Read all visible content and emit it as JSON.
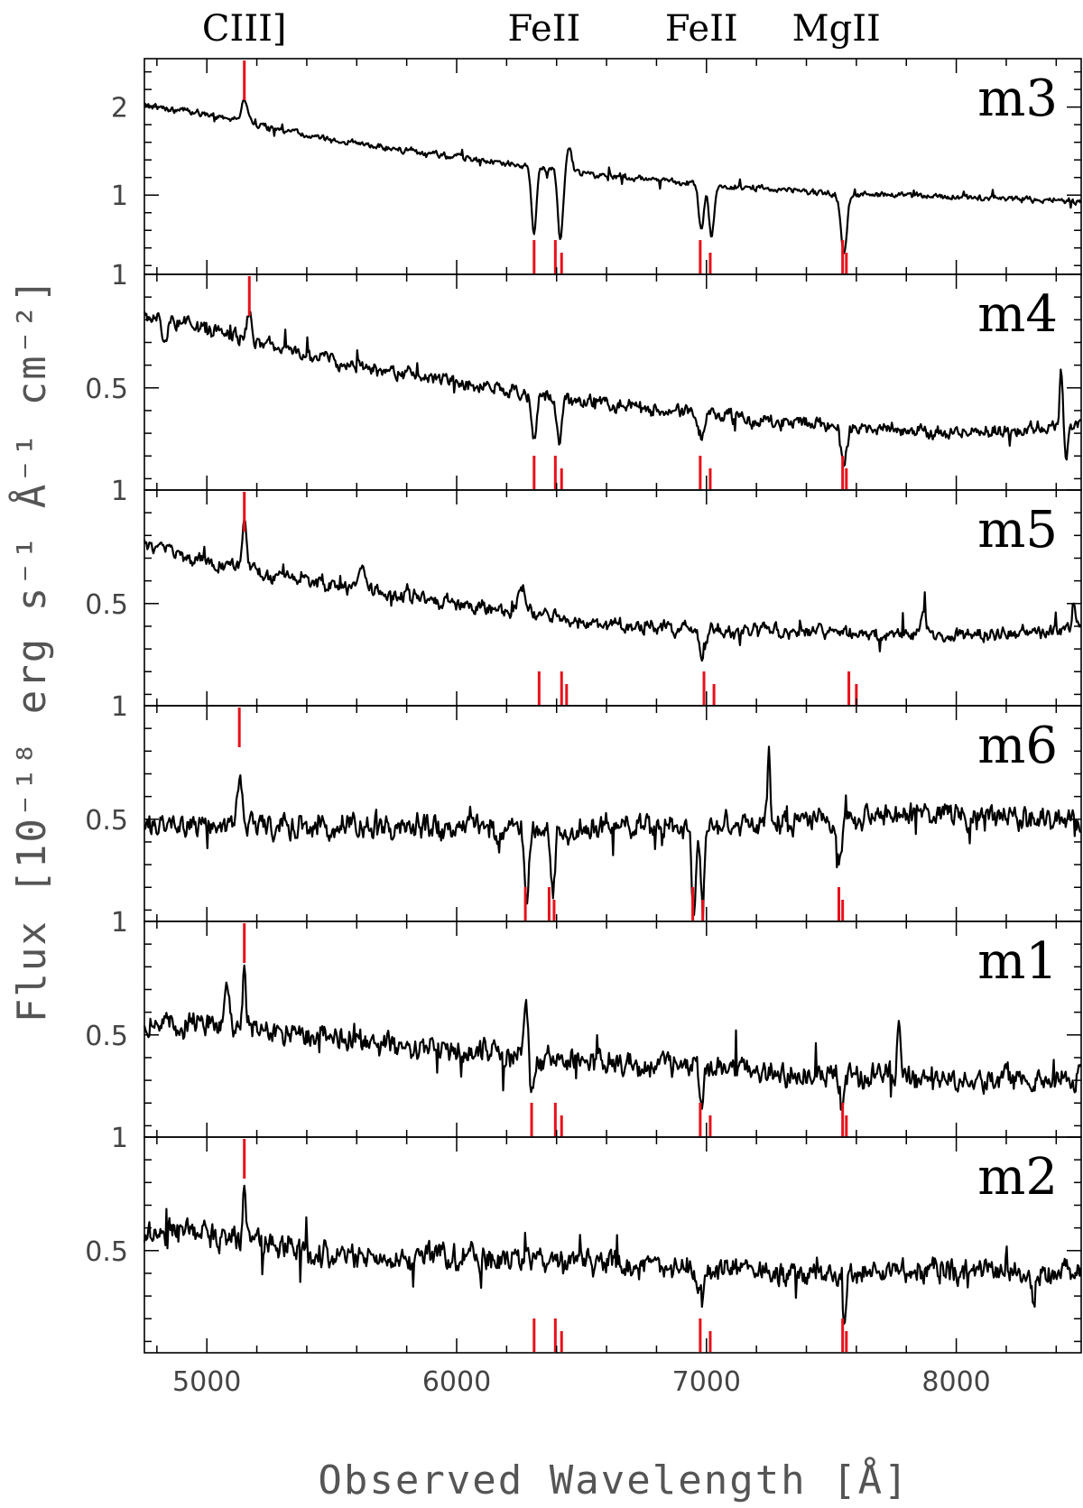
{
  "figure": {
    "xlabel": "Observed Wavelength [Å]",
    "ylabel": "Flux [10⁻¹⁸ erg s⁻¹ Å⁻¹ cm⁻²]",
    "marker_color": "#e8101a",
    "line_color": "#000000"
  },
  "line_labels": [
    {
      "label": "CIII]",
      "wavelength": 5150
    },
    {
      "label": "FeII",
      "wavelength": 6350
    },
    {
      "label": "FeII",
      "wavelength": 6980
    },
    {
      "label": "MgII",
      "wavelength": 7520
    }
  ],
  "chart_data": [
    {
      "type": "line",
      "panel": "m3",
      "xlim": [
        4750,
        8500
      ],
      "ylim": [
        0.1,
        2.55
      ],
      "yticks": [
        1,
        2
      ],
      "ytick_labels": [
        "1",
        "2"
      ],
      "xticks": [
        5000,
        6000,
        7000,
        8000
      ],
      "xtick_labels": [
        "5000",
        "6000",
        "7000",
        "8000"
      ],
      "series": [
        {
          "x_start": 4750,
          "x_end": 8500,
          "noise": 0.045,
          "spikes": true,
          "continuum": [
            [
              4750,
              2.02
            ],
            [
              5000,
              1.92
            ],
            [
              5500,
              1.62
            ],
            [
              6000,
              1.43
            ],
            [
              6500,
              1.25
            ],
            [
              7000,
              1.12
            ],
            [
              7500,
              1.02
            ],
            [
              8000,
              0.98
            ],
            [
              8500,
              0.93
            ]
          ],
          "features": [
            [
              5150,
              0.25,
              12
            ],
            [
              6310,
              -0.75,
              10
            ],
            [
              6415,
              -0.8,
              10
            ],
            [
              6450,
              0.3,
              10
            ],
            [
              6980,
              -0.55,
              10
            ],
            [
              7020,
              -0.6,
              10
            ],
            [
              7550,
              -0.7,
              12
            ]
          ]
        }
      ],
      "emission_markers": [
        5150
      ],
      "absorption_markers": [
        6310,
        6395,
        6420,
        6975,
        7015,
        7545,
        7560
      ]
    },
    {
      "type": "line",
      "panel": "m4",
      "xlim": [
        4750,
        8500
      ],
      "ylim": [
        0.05,
        1.0
      ],
      "yticks": [
        0.5,
        1
      ],
      "ytick_labels": [
        "0.5",
        "1"
      ],
      "xticks": [
        5000,
        6000,
        7000,
        8000
      ],
      "xtick_labels": [
        "5000",
        "6000",
        "7000",
        "8000"
      ],
      "series": [
        {
          "x_start": 4750,
          "x_end": 8500,
          "noise": 0.04,
          "spikes": true,
          "continuum": [
            [
              4750,
              0.82
            ],
            [
              5000,
              0.76
            ],
            [
              5500,
              0.62
            ],
            [
              6000,
              0.52
            ],
            [
              6500,
              0.44
            ],
            [
              7000,
              0.38
            ],
            [
              7500,
              0.33
            ],
            [
              8000,
              0.3
            ],
            [
              8500,
              0.33
            ]
          ],
          "features": [
            [
              4830,
              -0.12,
              10
            ],
            [
              5170,
              0.12,
              10
            ],
            [
              6310,
              -0.2,
              10
            ],
            [
              6410,
              -0.2,
              10
            ],
            [
              6980,
              -0.1,
              10
            ],
            [
              7550,
              -0.15,
              12
            ],
            [
              8420,
              0.25,
              6
            ],
            [
              8440,
              -0.15,
              6
            ]
          ]
        }
      ],
      "emission_markers": [
        5170
      ],
      "absorption_markers": [
        6310,
        6395,
        6420,
        6975,
        7015,
        7545,
        7560
      ]
    },
    {
      "type": "line",
      "panel": "m5",
      "xlim": [
        4750,
        8500
      ],
      "ylim": [
        0.05,
        1.0
      ],
      "yticks": [
        0.5,
        1
      ],
      "ytick_labels": [
        "0.5",
        "1"
      ],
      "xticks": [
        5000,
        6000,
        7000,
        8000
      ],
      "xtick_labels": [
        "5000",
        "6000",
        "7000",
        "8000"
      ],
      "series": [
        {
          "x_start": 4750,
          "x_end": 8500,
          "noise": 0.04,
          "spikes": true,
          "continuum": [
            [
              4750,
              0.75
            ],
            [
              5000,
              0.68
            ],
            [
              5500,
              0.58
            ],
            [
              6000,
              0.5
            ],
            [
              6500,
              0.42
            ],
            [
              7000,
              0.38
            ],
            [
              7500,
              0.37
            ],
            [
              8000,
              0.36
            ],
            [
              8500,
              0.38
            ]
          ],
          "features": [
            [
              5150,
              0.2,
              10
            ],
            [
              5620,
              0.12,
              10
            ],
            [
              6260,
              0.12,
              15
            ],
            [
              6985,
              -0.13,
              10
            ],
            [
              7870,
              0.12,
              10
            ],
            [
              8470,
              0.12,
              8
            ]
          ]
        }
      ],
      "emission_markers": [
        5150
      ],
      "absorption_markers": [
        6330,
        6420,
        6440,
        6990,
        7030,
        7570,
        7600
      ]
    },
    {
      "type": "line",
      "panel": "m6",
      "xlim": [
        4750,
        8500
      ],
      "ylim": [
        0.05,
        1.0
      ],
      "yticks": [
        0.5,
        1
      ],
      "ytick_labels": [
        "0.5",
        "1"
      ],
      "xticks": [
        5000,
        6000,
        7000,
        8000
      ],
      "xtick_labels": [
        "5000",
        "6000",
        "7000",
        "8000"
      ],
      "series": [
        {
          "x_start": 4750,
          "x_end": 8500,
          "noise": 0.07,
          "spikes": true,
          "continuum": [
            [
              4750,
              0.48
            ],
            [
              5500,
              0.47
            ],
            [
              6000,
              0.46
            ],
            [
              6500,
              0.46
            ],
            [
              7000,
              0.47
            ],
            [
              7500,
              0.5
            ],
            [
              8000,
              0.52
            ],
            [
              8500,
              0.5
            ]
          ],
          "features": [
            [
              5130,
              0.2,
              10
            ],
            [
              6280,
              -0.35,
              8
            ],
            [
              6385,
              -0.3,
              8
            ],
            [
              6950,
              -0.4,
              8
            ],
            [
              6985,
              -0.3,
              8
            ],
            [
              7250,
              0.3,
              5
            ],
            [
              7530,
              -0.2,
              10
            ]
          ]
        }
      ],
      "emission_markers": [
        5130
      ],
      "absorption_markers": [
        6275,
        6370,
        6390,
        6945,
        6985,
        7530,
        7545
      ]
    },
    {
      "type": "line",
      "panel": "m1",
      "xlim": [
        4750,
        8500
      ],
      "ylim": [
        0.05,
        1.0
      ],
      "yticks": [
        0.5,
        1
      ],
      "ytick_labels": [
        "0.5",
        "1"
      ],
      "xticks": [
        5000,
        6000,
        7000,
        8000
      ],
      "xtick_labels": [
        "5000",
        "6000",
        "7000",
        "8000"
      ],
      "series": [
        {
          "x_start": 4750,
          "x_end": 8500,
          "noise": 0.07,
          "spikes": true,
          "continuum": [
            [
              4750,
              0.55
            ],
            [
              5000,
              0.55
            ],
            [
              5500,
              0.48
            ],
            [
              6000,
              0.43
            ],
            [
              6500,
              0.38
            ],
            [
              7000,
              0.35
            ],
            [
              7500,
              0.32
            ],
            [
              8000,
              0.31
            ],
            [
              8500,
              0.3
            ]
          ],
          "features": [
            [
              5080,
              0.2,
              10
            ],
            [
              5150,
              0.25,
              6
            ],
            [
              6280,
              0.22,
              8
            ],
            [
              6300,
              -0.2,
              8
            ],
            [
              6980,
              -0.15,
              8
            ],
            [
              7540,
              -0.15,
              8
            ],
            [
              7770,
              0.25,
              6
            ]
          ]
        }
      ],
      "emission_markers": [
        5150
      ],
      "absorption_markers": [
        6300,
        6395,
        6420,
        6975,
        7015,
        7545,
        7560
      ]
    },
    {
      "type": "line",
      "panel": "m2",
      "xlim": [
        4750,
        8500
      ],
      "ylim": [
        0.05,
        1.0
      ],
      "yticks": [
        0.5,
        1
      ],
      "ytick_labels": [
        "0.5",
        "1"
      ],
      "xticks": [
        5000,
        6000,
        7000,
        8000
      ],
      "xtick_labels": [
        "5000",
        "6000",
        "7000",
        "8000"
      ],
      "series": [
        {
          "x_start": 4750,
          "x_end": 8500,
          "noise": 0.07,
          "spikes": true,
          "continuum": [
            [
              4750,
              0.57
            ],
            [
              5000,
              0.58
            ],
            [
              5500,
              0.48
            ],
            [
              6000,
              0.47
            ],
            [
              6500,
              0.45
            ],
            [
              7000,
              0.42
            ],
            [
              7500,
              0.4
            ],
            [
              8000,
              0.42
            ],
            [
              8500,
              0.4
            ]
          ],
          "features": [
            [
              5150,
              0.22,
              6
            ],
            [
              6980,
              -0.15,
              8
            ],
            [
              7550,
              -0.2,
              8
            ],
            [
              8310,
              -0.2,
              6
            ]
          ]
        }
      ],
      "emission_markers": [
        5150
      ],
      "absorption_markers": [
        6310,
        6395,
        6420,
        6975,
        7015,
        7545,
        7560
      ]
    }
  ]
}
